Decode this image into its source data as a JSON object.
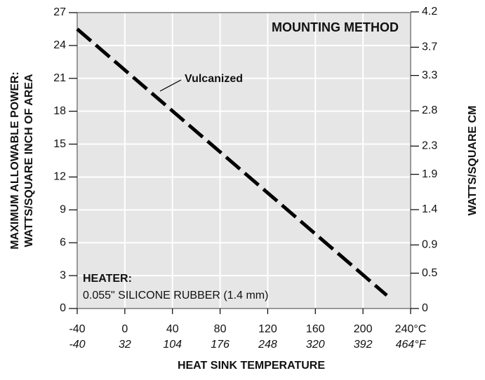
{
  "chart_data": {
    "type": "line",
    "annotations": {
      "method": "MOUNTING METHOD",
      "heater_title": "HEATER:",
      "heater_desc": "0.055\" SILICONE RUBBER (1.4 mm)"
    },
    "ylabel": [
      "MAXIMUM ALLOWABLE POWER:",
      "WATTS/SQUARE INCH OF AREA"
    ],
    "y2label": "WATTS/SQUARE CM",
    "xlabel": "HEAT SINK TEMPERATURE",
    "x": [
      -40,
      220
    ],
    "series": [
      {
        "name": "Vulcanized",
        "color": "#000000",
        "values": [
          25.5,
          1.2
        ]
      }
    ],
    "xlim": [
      -40,
      240
    ],
    "xticks": [
      -40,
      0,
      40,
      80,
      120,
      160,
      200,
      {
        "value": 240,
        "label": "240°C"
      }
    ],
    "x2lim": [
      -40,
      464
    ],
    "x2ticks": [
      -40,
      32,
      104,
      176,
      248,
      320,
      392,
      {
        "value": 464,
        "label": "464°F"
      }
    ],
    "ylim": [
      0,
      27
    ],
    "yticks": [
      0,
      3,
      6,
      9,
      12,
      15,
      18,
      21,
      24,
      27
    ],
    "y2lim": [
      0,
      4.19
    ],
    "y2ticks": [
      0,
      0.5,
      0.9,
      1.4,
      1.9,
      2.3,
      2.8,
      3.3,
      3.7,
      4.2
    ],
    "grid": true
  }
}
